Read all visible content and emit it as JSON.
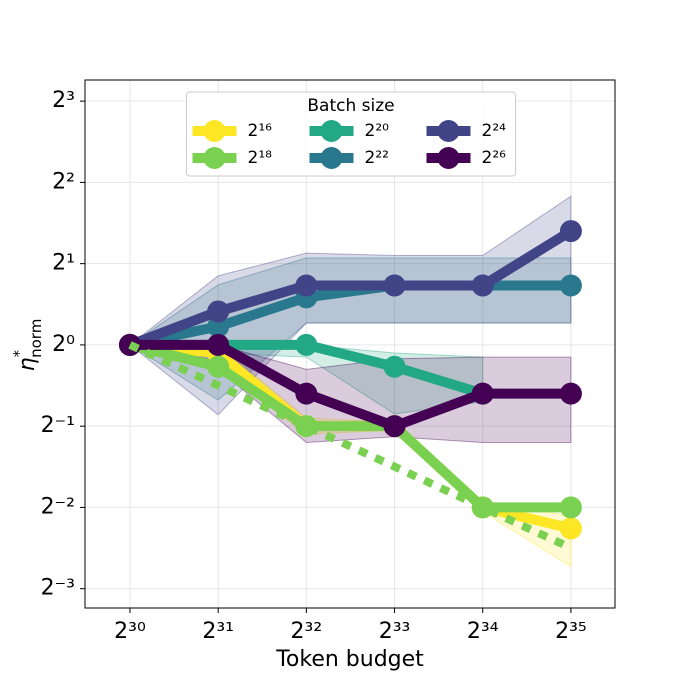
{
  "chart_data": {
    "type": "line",
    "xlabel": "Token budget",
    "ylabel": {
      "symbol": "η",
      "superscript": "*",
      "subscript": "norm"
    },
    "legend_title": "Batch size",
    "legend": "upper center",
    "log_base": 2,
    "xlog": true,
    "ylog": true,
    "grid": true,
    "x": [
      1073741824,
      2147483648,
      4294967296,
      8589934592,
      17179869184,
      34359738368
    ],
    "xlim": [
      754000000,
      48590000000
    ],
    "xticks": [
      {
        "value": 1073741824,
        "label": "2³⁰"
      },
      {
        "value": 2147483648,
        "label": "2³¹"
      },
      {
        "value": 4294967296,
        "label": "2³²"
      },
      {
        "value": 8589934592,
        "label": "2³³"
      },
      {
        "value": 17179869184,
        "label": "2³⁴"
      },
      {
        "value": 34359738368,
        "label": "2³⁵"
      }
    ],
    "ylim": [
      0.106,
      9.58
    ],
    "yticks": [
      {
        "value": 8,
        "label": "2³"
      },
      {
        "value": 4,
        "label": "2²"
      },
      {
        "value": 2,
        "label": "2¹"
      },
      {
        "value": 1,
        "label": "2⁰"
      },
      {
        "value": 0.5,
        "label": "2⁻¹"
      },
      {
        "value": 0.25,
        "label": "2⁻²"
      },
      {
        "value": 0.125,
        "label": "2⁻³"
      }
    ],
    "series": [
      {
        "name": "2¹⁶",
        "color": "#fde725",
        "values": [
          1,
          0.933,
          0.5,
          0.5,
          0.25,
          0.209
        ],
        "band": {
          "upper": [
            1,
            1,
            0.536,
            0.518,
            0.259,
            0.233
          ],
          "lower": [
            1,
            0.812,
            0.467,
            0.483,
            0.241,
            0.151
          ]
        }
      },
      {
        "name": "2¹⁸",
        "color": "#7ad151",
        "values": [
          1,
          0.83,
          0.5,
          0.5,
          0.25,
          0.25
        ]
      },
      {
        "name": "2²⁰",
        "color": "#22a884",
        "values": [
          1,
          1,
          1,
          0.83,
          0.66,
          null
        ],
        "band": {
          "upper": [
            1,
            1,
            1,
            0.933,
            0.901,
            null
          ],
          "lower": [
            1,
            0.933,
            0.901,
            0.555,
            0.616,
            null
          ]
        }
      },
      {
        "name": "2²²",
        "color": "#2a788e",
        "values": [
          1,
          1.17,
          1.5,
          1.66,
          1.66,
          1.66
        ],
        "band": {
          "upper": [
            1,
            1.67,
            2.099,
            2.099,
            2.099,
            2.099
          ],
          "lower": [
            1,
            0.624,
            1.206,
            1.206,
            1.206,
            1.206
          ]
        }
      },
      {
        "name": "2²⁴",
        "color": "#414487",
        "values": [
          1,
          1.33,
          1.66,
          1.66,
          1.66,
          2.64
        ],
        "band": {
          "upper": [
            1,
            1.803,
            2.188,
            2.144,
            2.144,
            3.555
          ],
          "lower": [
            1,
            0.551,
            1.206,
            1.206,
            1.206,
            1.206
          ]
        }
      },
      {
        "name": "2²⁶",
        "color": "#440154",
        "values": [
          1,
          1,
          0.66,
          0.5,
          0.66,
          0.66
        ],
        "band": {
          "upper": [
            1,
            1,
            0.812,
            0.889,
            0.901,
            0.901
          ],
          "lower": [
            1,
            0.812,
            0.435,
            0.457,
            0.435,
            0.435
          ]
        }
      },
      {
        "color": "#7ad151",
        "dash": true,
        "values": [
          1,
          0.707,
          0.5,
          0.354,
          0.25,
          0.177
        ]
      }
    ]
  }
}
